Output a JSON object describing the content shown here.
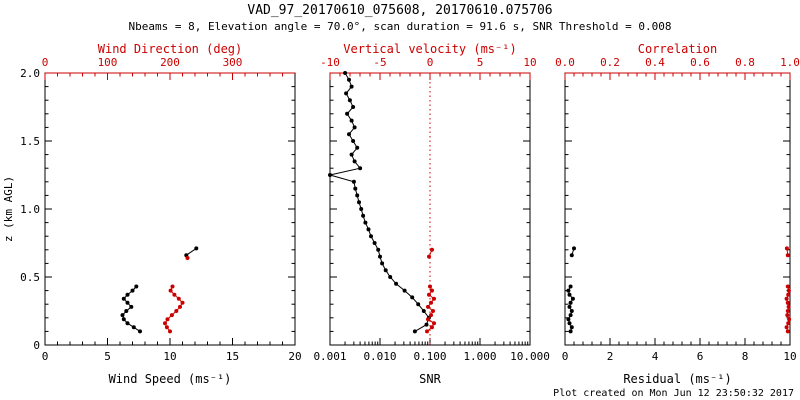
{
  "header": {
    "title": "VAD_97_20170610_075608, 20170610.075706",
    "subtitle": "Nbeams = 8, Elevation angle = 70.0°, scan duration = 91.6 s, SNR Threshold = 0.008"
  },
  "footer": {
    "created": "Plot created on Mon Jun 12 23:50:32 2017"
  },
  "colors": {
    "axis_black": "#000000",
    "axis_red": "#cc0000",
    "background": "#ffffff"
  },
  "chart_data": [
    {
      "type": "scatter",
      "name": "wind-profile",
      "ylabel": "z (km AGL)",
      "ylim": [
        0,
        2
      ],
      "yticks": [
        0,
        0.5,
        1,
        1.5,
        2
      ],
      "ytick_labels": [
        "0",
        "0.5",
        "1.0",
        "1.5",
        "2.0"
      ],
      "x_bottom": {
        "label": "Wind Speed (ms⁻¹)",
        "lim": [
          0,
          20
        ],
        "scale": "linear",
        "color": "#000000",
        "ticks": [
          0,
          5,
          10,
          15,
          20
        ],
        "tick_labels": [
          "0",
          "5",
          "10",
          "15",
          "20"
        ]
      },
      "x_top": {
        "label": "Wind Direction (deg)",
        "lim": [
          0,
          400
        ],
        "scale": "linear",
        "color": "#cc0000",
        "ticks": [
          0,
          100,
          200,
          300
        ],
        "tick_labels": [
          "0",
          "100",
          "200",
          "300"
        ]
      },
      "series": [
        {
          "name": "wind-speed",
          "axis": "bottom",
          "color": "#000000",
          "segments": [
            {
              "z": [
                0.1,
                0.13,
                0.16,
                0.19,
                0.22,
                0.25,
                0.28,
                0.31,
                0.34,
                0.37,
                0.4,
                0.43
              ],
              "v": [
                7.6,
                7.1,
                6.6,
                6.3,
                6.2,
                6.5,
                6.9,
                6.6,
                6.3,
                6.6,
                7.0,
                7.3
              ]
            },
            {
              "z": [
                0.66,
                0.71
              ],
              "v": [
                11.3,
                12.1
              ]
            }
          ]
        },
        {
          "name": "wind-direction",
          "axis": "top",
          "color": "#cc0000",
          "segments": [
            {
              "z": [
                0.1,
                0.13,
                0.16,
                0.19,
                0.22,
                0.25,
                0.28,
                0.31,
                0.34,
                0.37,
                0.4,
                0.43
              ],
              "v": [
                200,
                195,
                192,
                196,
                203,
                210,
                216,
                220,
                214,
                207,
                201,
                204
              ]
            },
            {
              "z": [
                0.64
              ],
              "v": [
                228
              ]
            }
          ]
        }
      ]
    },
    {
      "type": "scatter",
      "name": "snr-profile",
      "ylim": [
        0,
        2
      ],
      "yticks": [
        0,
        0.5,
        1,
        1.5,
        2
      ],
      "x_bottom": {
        "label": "SNR",
        "lim": [
          0.001,
          10
        ],
        "scale": "log",
        "color": "#000000",
        "ticks": [
          0.001,
          0.01,
          0.1,
          1,
          10
        ],
        "tick_labels": [
          "0.001",
          "0.010",
          "0.100",
          "1.000",
          "10.000"
        ]
      },
      "x_top": {
        "label": "Vertical velocity (ms⁻¹)",
        "lim": [
          -10,
          10
        ],
        "scale": "linear",
        "color": "#cc0000",
        "ticks": [
          -10,
          -5,
          0,
          5,
          10
        ],
        "tick_labels": [
          "-10",
          "-5",
          "0",
          "5",
          "10"
        ]
      },
      "ref_line": {
        "axis": "top",
        "value": 0,
        "color": "#cc0000",
        "style": "dotted"
      },
      "series": [
        {
          "name": "snr",
          "axis": "bottom",
          "color": "#000000",
          "segments": [
            {
              "z": [
                0.1,
                0.15,
                0.2,
                0.25,
                0.3,
                0.35,
                0.4,
                0.45,
                0.5,
                0.55,
                0.6,
                0.65,
                0.7,
                0.75,
                0.8,
                0.85,
                0.9,
                0.95,
                1.0,
                1.05,
                1.1,
                1.15,
                1.2,
                1.25,
                1.3,
                1.35,
                1.4,
                1.45,
                1.5,
                1.55,
                1.6,
                1.65,
                1.7,
                1.75,
                1.8,
                1.85,
                1.9,
                1.95,
                2.0
              ],
              "v": [
                0.05,
                0.085,
                0.095,
                0.075,
                0.058,
                0.044,
                0.031,
                0.021,
                0.016,
                0.013,
                0.011,
                0.01,
                0.0092,
                0.0078,
                0.0066,
                0.0059,
                0.0051,
                0.0046,
                0.0042,
                0.0038,
                0.0035,
                0.0032,
                0.003,
                0.001,
                0.004,
                0.0031,
                0.0027,
                0.0035,
                0.0029,
                0.0024,
                0.0031,
                0.0027,
                0.0022,
                0.0029,
                0.0025,
                0.0021,
                0.0027,
                0.0024,
                0.002
              ]
            }
          ]
        },
        {
          "name": "vertical-velocity",
          "axis": "top",
          "color": "#cc0000",
          "segments": [
            {
              "z": [
                0.1,
                0.13,
                0.16,
                0.19,
                0.22,
                0.25,
                0.28,
                0.31,
                0.34,
                0.37,
                0.4,
                0.43
              ],
              "v": [
                -0.3,
                0.2,
                0.4,
                -0.2,
                0.1,
                0.3,
                -0.2,
                0.1,
                0.4,
                -0.1,
                0.2,
                0.0
              ]
            },
            {
              "z": [
                0.65,
                0.7
              ],
              "v": [
                -0.1,
                0.2
              ]
            }
          ]
        }
      ]
    },
    {
      "type": "scatter",
      "name": "residual-profile",
      "ylim": [
        0,
        2
      ],
      "yticks": [
        0,
        0.5,
        1,
        1.5,
        2
      ],
      "x_bottom": {
        "label": "Residual (ms⁻¹)",
        "lim": [
          0,
          10
        ],
        "scale": "linear",
        "color": "#000000",
        "ticks": [
          0,
          2,
          4,
          6,
          8,
          10
        ],
        "tick_labels": [
          "0",
          "2",
          "4",
          "6",
          "8",
          "10"
        ]
      },
      "x_top": {
        "label": "Correlation",
        "lim": [
          0,
          1
        ],
        "scale": "linear",
        "color": "#cc0000",
        "ticks": [
          0,
          0.2,
          0.4,
          0.6,
          0.8,
          1
        ],
        "tick_labels": [
          "0.0",
          "0.2",
          "0.4",
          "0.6",
          "0.8",
          "1.0"
        ]
      },
      "series": [
        {
          "name": "residual",
          "axis": "bottom",
          "color": "#000000",
          "segments": [
            {
              "z": [
                0.1,
                0.13,
                0.16,
                0.19,
                0.22,
                0.25,
                0.28,
                0.31,
                0.34,
                0.37,
                0.4,
                0.43
              ],
              "v": [
                0.25,
                0.3,
                0.2,
                0.15,
                0.25,
                0.3,
                0.2,
                0.25,
                0.35,
                0.2,
                0.15,
                0.25
              ]
            },
            {
              "z": [
                0.66,
                0.71
              ],
              "v": [
                0.3,
                0.4
              ]
            }
          ]
        },
        {
          "name": "correlation",
          "axis": "top",
          "color": "#cc0000",
          "segments": [
            {
              "z": [
                0.1,
                0.13,
                0.16,
                0.19,
                0.22,
                0.25,
                0.28,
                0.31,
                0.34,
                0.37,
                0.4,
                0.43
              ],
              "v": [
                0.99,
                0.985,
                0.992,
                0.996,
                0.988,
                0.99,
                0.994,
                0.99,
                0.985,
                0.992,
                0.995,
                0.99
              ]
            },
            {
              "z": [
                0.66,
                0.71
              ],
              "v": [
                0.99,
                0.986
              ]
            }
          ]
        }
      ]
    }
  ]
}
